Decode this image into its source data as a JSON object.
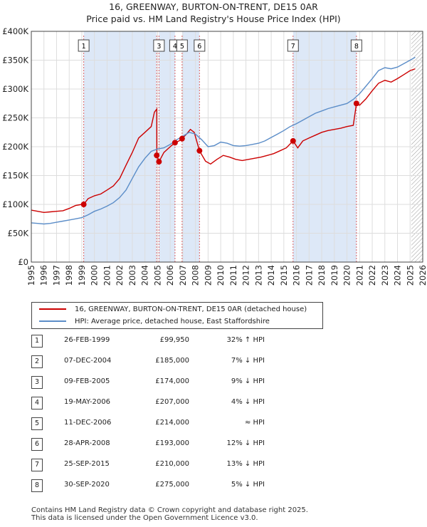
{
  "title_line1": "16, GREENWAY, BURTON-ON-TRENT, DE15 0AR",
  "title_line2": "Price paid vs. HM Land Registry's House Price Index (HPI)",
  "colors": {
    "red": "#cc0000",
    "blue": "#5b8dc8",
    "shade": "#dde8f7",
    "hatch": "#aaaaaa",
    "marker_line": "#cc0000",
    "grid": "#dddddd"
  },
  "chart_data": {
    "type": "line",
    "xlim": [
      1995,
      2026
    ],
    "ylim": [
      0,
      400000
    ],
    "y_ticks": [
      {
        "value": 0,
        "label": "£0"
      },
      {
        "value": 50000,
        "label": "£50K"
      },
      {
        "value": 100000,
        "label": "£100K"
      },
      {
        "value": 150000,
        "label": "£150K"
      },
      {
        "value": 200000,
        "label": "£200K"
      },
      {
        "value": 250000,
        "label": "£250K"
      },
      {
        "value": 300000,
        "label": "£300K"
      },
      {
        "value": 350000,
        "label": "£350K"
      },
      {
        "value": 400000,
        "label": "£400K"
      }
    ],
    "x_ticks": [
      "1995",
      "1996",
      "1997",
      "1998",
      "1999",
      "2000",
      "2001",
      "2002",
      "2003",
      "2004",
      "2005",
      "2006",
      "2007",
      "2008",
      "2009",
      "2010",
      "2011",
      "2012",
      "2013",
      "2014",
      "2015",
      "2016",
      "2017",
      "2018",
      "2019",
      "2020",
      "2021",
      "2022",
      "2023",
      "2024",
      "2025",
      "2026"
    ],
    "future_from": 2025.1,
    "shaded_ranges": [
      [
        1999.15,
        2004.93
      ],
      [
        2005.1,
        2006.38
      ],
      [
        2006.94,
        2008.32
      ],
      [
        2015.73,
        2020.75
      ]
    ],
    "series": [
      {
        "name": "16, GREENWAY, BURTON-ON-TRENT, DE15 0AR (detached house)",
        "key": "price",
        "points": [
          [
            1995.0,
            90000
          ],
          [
            1995.5,
            88000
          ],
          [
            1996.0,
            86000
          ],
          [
            1996.5,
            87000
          ],
          [
            1997.0,
            88000
          ],
          [
            1997.5,
            89000
          ],
          [
            1998.0,
            93000
          ],
          [
            1998.5,
            98000
          ],
          [
            1999.0,
            100000
          ],
          [
            1999.15,
            99950
          ],
          [
            1999.5,
            110000
          ],
          [
            2000.0,
            115000
          ],
          [
            2000.5,
            118000
          ],
          [
            2001.0,
            125000
          ],
          [
            2001.5,
            132000
          ],
          [
            2002.0,
            145000
          ],
          [
            2002.5,
            168000
          ],
          [
            2003.0,
            190000
          ],
          [
            2003.5,
            215000
          ],
          [
            2004.0,
            225000
          ],
          [
            2004.5,
            235000
          ],
          [
            2004.75,
            260000
          ],
          [
            2004.93,
            265000
          ],
          [
            2004.94,
            185000
          ],
          [
            2005.11,
            174000
          ],
          [
            2005.5,
            190000
          ],
          [
            2006.0,
            200000
          ],
          [
            2006.38,
            207000
          ],
          [
            2006.7,
            210000
          ],
          [
            2006.94,
            214000
          ],
          [
            2007.3,
            222000
          ],
          [
            2007.6,
            230000
          ],
          [
            2007.9,
            225000
          ],
          [
            2008.32,
            193000
          ],
          [
            2008.8,
            175000
          ],
          [
            2009.2,
            170000
          ],
          [
            2009.7,
            178000
          ],
          [
            2010.2,
            185000
          ],
          [
            2010.7,
            182000
          ],
          [
            2011.2,
            178000
          ],
          [
            2011.7,
            176000
          ],
          [
            2012.2,
            178000
          ],
          [
            2012.7,
            180000
          ],
          [
            2013.2,
            182000
          ],
          [
            2013.7,
            185000
          ],
          [
            2014.2,
            188000
          ],
          [
            2014.7,
            193000
          ],
          [
            2015.2,
            198000
          ],
          [
            2015.73,
            210000
          ],
          [
            2016.1,
            198000
          ],
          [
            2016.5,
            210000
          ],
          [
            2017.0,
            215000
          ],
          [
            2017.5,
            220000
          ],
          [
            2018.0,
            225000
          ],
          [
            2018.5,
            228000
          ],
          [
            2019.0,
            230000
          ],
          [
            2019.5,
            232000
          ],
          [
            2020.0,
            235000
          ],
          [
            2020.5,
            237000
          ],
          [
            2020.75,
            275000
          ],
          [
            2021.0,
            272000
          ],
          [
            2021.5,
            283000
          ],
          [
            2022.0,
            297000
          ],
          [
            2022.5,
            310000
          ],
          [
            2023.0,
            315000
          ],
          [
            2023.5,
            312000
          ],
          [
            2024.0,
            318000
          ],
          [
            2024.5,
            325000
          ],
          [
            2025.0,
            332000
          ],
          [
            2025.4,
            335000
          ]
        ]
      },
      {
        "name": "HPI: Average price, detached house, East Staffordshire",
        "key": "hpi",
        "points": [
          [
            1995.0,
            68000
          ],
          [
            1995.5,
            67000
          ],
          [
            1996.0,
            66000
          ],
          [
            1996.5,
            67000
          ],
          [
            1997.0,
            69000
          ],
          [
            1997.5,
            71000
          ],
          [
            1998.0,
            73000
          ],
          [
            1998.5,
            75000
          ],
          [
            1999.0,
            77000
          ],
          [
            1999.5,
            82000
          ],
          [
            2000.0,
            88000
          ],
          [
            2000.5,
            92000
          ],
          [
            2001.0,
            97000
          ],
          [
            2001.5,
            103000
          ],
          [
            2002.0,
            112000
          ],
          [
            2002.5,
            125000
          ],
          [
            2003.0,
            145000
          ],
          [
            2003.5,
            165000
          ],
          [
            2004.0,
            180000
          ],
          [
            2004.5,
            192000
          ],
          [
            2005.0,
            196000
          ],
          [
            2005.5,
            198000
          ],
          [
            2006.0,
            204000
          ],
          [
            2006.5,
            212000
          ],
          [
            2007.0,
            218000
          ],
          [
            2007.5,
            225000
          ],
          [
            2008.0,
            222000
          ],
          [
            2008.5,
            212000
          ],
          [
            2009.0,
            200000
          ],
          [
            2009.5,
            202000
          ],
          [
            2010.0,
            208000
          ],
          [
            2010.5,
            206000
          ],
          [
            2011.0,
            202000
          ],
          [
            2011.5,
            201000
          ],
          [
            2012.0,
            202000
          ],
          [
            2012.5,
            204000
          ],
          [
            2013.0,
            206000
          ],
          [
            2013.5,
            210000
          ],
          [
            2014.0,
            216000
          ],
          [
            2014.5,
            222000
          ],
          [
            2015.0,
            228000
          ],
          [
            2015.5,
            235000
          ],
          [
            2016.0,
            240000
          ],
          [
            2016.5,
            246000
          ],
          [
            2017.0,
            252000
          ],
          [
            2017.5,
            258000
          ],
          [
            2018.0,
            262000
          ],
          [
            2018.5,
            266000
          ],
          [
            2019.0,
            269000
          ],
          [
            2019.5,
            272000
          ],
          [
            2020.0,
            275000
          ],
          [
            2020.5,
            282000
          ],
          [
            2021.0,
            292000
          ],
          [
            2021.5,
            305000
          ],
          [
            2022.0,
            318000
          ],
          [
            2022.5,
            332000
          ],
          [
            2023.0,
            337000
          ],
          [
            2023.5,
            335000
          ],
          [
            2024.0,
            338000
          ],
          [
            2024.5,
            344000
          ],
          [
            2025.0,
            350000
          ],
          [
            2025.4,
            355000
          ]
        ]
      }
    ],
    "sales": [
      {
        "n": "1",
        "t": 1999.15,
        "price": 99950,
        "date": "26-FEB-1999",
        "price_label": "£99,950",
        "hpi": "32% ↑ HPI"
      },
      {
        "n": "2",
        "t": 2004.93,
        "price": 185000,
        "date": "07-DEC-2004",
        "price_label": "£185,000",
        "hpi": "7% ↓ HPI"
      },
      {
        "n": "3",
        "t": 2005.11,
        "price": 174000,
        "date": "09-FEB-2005",
        "price_label": "£174,000",
        "hpi": "9% ↓ HPI"
      },
      {
        "n": "4",
        "t": 2006.38,
        "price": 207000,
        "date": "19-MAY-2006",
        "price_label": "£207,000",
        "hpi": "4% ↓ HPI"
      },
      {
        "n": "5",
        "t": 2006.94,
        "price": 214000,
        "date": "11-DEC-2006",
        "price_label": "£214,000",
        "hpi": "≈ HPI"
      },
      {
        "n": "6",
        "t": 2008.32,
        "price": 193000,
        "date": "28-APR-2008",
        "price_label": "£193,000",
        "hpi": "12% ↓ HPI"
      },
      {
        "n": "7",
        "t": 2015.73,
        "price": 210000,
        "date": "25-SEP-2015",
        "price_label": "£210,000",
        "hpi": "13% ↓ HPI"
      },
      {
        "n": "8",
        "t": 2020.75,
        "price": 275000,
        "date": "30-SEP-2020",
        "price_label": "£275,000",
        "hpi": "5% ↓ HPI"
      }
    ],
    "marker_box_order": [
      "1",
      "3",
      "4",
      "5",
      "6",
      "7",
      "8"
    ]
  },
  "legend": {
    "price_label": "16, GREENWAY, BURTON-ON-TRENT, DE15 0AR (detached house)",
    "hpi_label": "HPI: Average price, detached house, East Staffordshire"
  },
  "footer": {
    "line1": "Contains HM Land Registry data © Crown copyright and database right 2025.",
    "line2": "This data is licensed under the Open Government Licence v3.0."
  }
}
